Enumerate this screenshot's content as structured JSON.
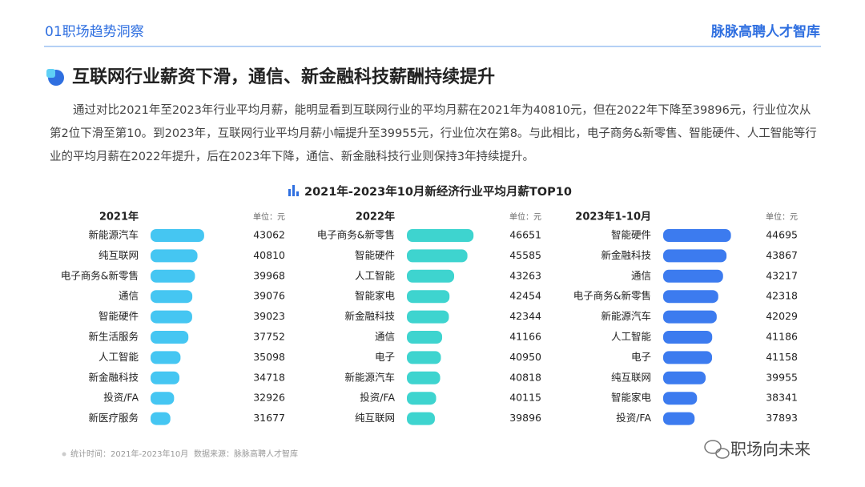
{
  "header": {
    "section": "01职场趋势洞察",
    "brand": "脉脉高聘人才智库"
  },
  "headline": "互联网行业薪资下滑，通信、新金融科技薪酬持续提升",
  "paragraph": "通过对比2021年至2023年行业平均月薪，能明显看到互联网行业的平均月薪在2021年为40810元，但在2022年下降至39896元，行业位次从第2位下滑至第10。到2023年，互联网行业平均月薪小幅提升至39955元，行业位次在第8。与此相比，电子商务&新零售、智能硬件、人工智能等行业的平均月薪在2022年提升，后在2023年下降，通信、新金融科技行业则保持3年持续提升。",
  "figure_title": "2021年-2023年10月新经济行业平均月薪TOP10",
  "footnote": {
    "time": "统计时间：2021年-2023年10月",
    "source": "数据来源：脉脉高聘人才智库"
  },
  "watermark": "职场向未来",
  "chart_data": [
    {
      "type": "bar",
      "orientation": "horizontal",
      "title": "2021年",
      "unit": "单位：元",
      "color": "#45c6f2",
      "xlim": [
        25000,
        52000
      ],
      "categories": [
        "新能源汽车",
        "纯互联网",
        "电子商务&新零售",
        "通信",
        "智能硬件",
        "新生活服务",
        "人工智能",
        "新金融科技",
        "投资/FA",
        "新医疗服务"
      ],
      "values": [
        43062,
        40810,
        39968,
        39076,
        39023,
        37752,
        35098,
        34718,
        32926,
        31677
      ]
    },
    {
      "type": "bar",
      "orientation": "horizontal",
      "title": "2022年",
      "unit": "单位：元",
      "color": "#3ed4cf",
      "xlim": [
        35000,
        49000
      ],
      "categories": [
        "电子商务&新零售",
        "智能硬件",
        "人工智能",
        "智能家电",
        "新金融科技",
        "通信",
        "电子",
        "新能源汽车",
        "投资/FA",
        "纯互联网"
      ],
      "values": [
        46651,
        45585,
        43263,
        42454,
        42344,
        41166,
        40950,
        40818,
        40115,
        39896
      ]
    },
    {
      "type": "bar",
      "orientation": "horizontal",
      "title": "2023年1-10月",
      "unit": "单位：元",
      "color": "#3c7bef",
      "xlim": [
        32000,
        47000
      ],
      "categories": [
        "智能硬件",
        "新金融科技",
        "通信",
        "电子商务&新零售",
        "新能源汽车",
        "人工智能",
        "电子",
        "纯互联网",
        "智能家电",
        "投资/FA"
      ],
      "values": [
        44695,
        43867,
        43217,
        42318,
        42029,
        41186,
        41158,
        39955,
        38341,
        37893
      ]
    }
  ]
}
